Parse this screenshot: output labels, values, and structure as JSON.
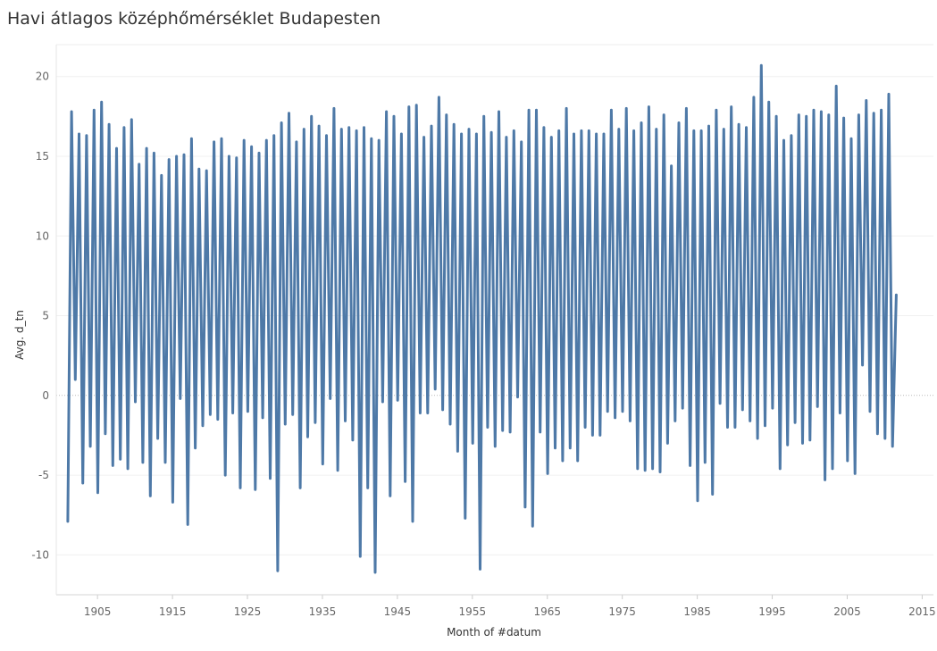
{
  "chart_data": {
    "type": "line",
    "title": "Havi átlagos középhőmérséklet Budapesten",
    "xlabel": "Month of #datum",
    "ylabel": "Avg. d_tn",
    "xlim": [
      1899.5,
      2016.5
    ],
    "ylim": [
      -12.5,
      22
    ],
    "x_ticks": [
      "1905",
      "1915",
      "1925",
      "1935",
      "1945",
      "1955",
      "1965",
      "1975",
      "1985",
      "1995",
      "2005",
      "2015"
    ],
    "y_ticks": [
      "-10",
      "-5",
      "0",
      "5",
      "10",
      "15",
      "20"
    ],
    "grid": true,
    "series": [
      {
        "color": "#4e79a7",
        "x_start": 1901,
        "x_end": 2011,
        "note_values": "annual extremes (January minimum, July maximum) per year",
        "years": [
          1901,
          1902,
          1903,
          1904,
          1905,
          1906,
          1907,
          1908,
          1909,
          1910,
          1911,
          1912,
          1913,
          1914,
          1915,
          1916,
          1917,
          1918,
          1919,
          1920,
          1921,
          1922,
          1923,
          1924,
          1925,
          1926,
          1927,
          1928,
          1929,
          1930,
          1931,
          1932,
          1933,
          1934,
          1935,
          1936,
          1937,
          1938,
          1939,
          1940,
          1941,
          1942,
          1943,
          1944,
          1945,
          1946,
          1947,
          1948,
          1949,
          1950,
          1951,
          1952,
          1953,
          1954,
          1955,
          1956,
          1957,
          1958,
          1959,
          1960,
          1961,
          1962,
          1963,
          1964,
          1965,
          1966,
          1967,
          1968,
          1969,
          1970,
          1971,
          1972,
          1973,
          1974,
          1975,
          1976,
          1977,
          1978,
          1979,
          1980,
          1981,
          1982,
          1983,
          1984,
          1985,
          1986,
          1987,
          1988,
          1989,
          1990,
          1991,
          1992,
          1993,
          1994,
          1995,
          1996,
          1997,
          1998,
          1999,
          2000,
          2001,
          2002,
          2003,
          2004,
          2005,
          2006,
          2007,
          2008,
          2009,
          2010,
          2011
        ],
        "min": [
          -7.9,
          1.0,
          -5.5,
          -3.2,
          -6.1,
          -2.4,
          -4.4,
          -4.0,
          -4.6,
          -0.4,
          -4.2,
          -6.3,
          -2.7,
          -4.2,
          -6.7,
          -0.2,
          -8.1,
          -3.3,
          -1.9,
          -1.2,
          -1.5,
          -5.0,
          -1.1,
          -5.8,
          -1.0,
          -5.9,
          -1.4,
          -5.2,
          -11.0,
          -1.8,
          -1.2,
          -5.8,
          -2.6,
          -1.7,
          -4.3,
          -0.2,
          -4.7,
          -1.6,
          -2.8,
          -10.1,
          -5.8,
          -11.1,
          -0.4,
          -6.3,
          -0.3,
          -5.4,
          -7.9,
          -1.1,
          -1.1,
          0.4,
          -0.9,
          -1.8,
          -3.5,
          -7.7,
          -3.0,
          -10.9,
          -2.0,
          -3.2,
          -2.2,
          -2.3,
          -0.1,
          -7.0,
          -8.2,
          -2.3,
          -4.9,
          -3.3,
          -4.1,
          -3.3,
          -4.1,
          -2.0,
          -2.5,
          -2.5,
          -1.0,
          -1.4,
          -1.0,
          -1.6,
          -4.6,
          -4.7,
          -4.6,
          -4.8,
          -3.0,
          -1.6,
          -0.8,
          -4.4,
          -6.6,
          -4.2,
          -6.2,
          -0.5,
          -2.0,
          -2.0,
          -0.9,
          -1.6,
          -2.7,
          -1.9,
          -0.8,
          -4.6,
          -3.1,
          -1.7,
          -3.0,
          -2.8,
          -0.7,
          -5.3,
          -4.6,
          -1.1,
          -4.1,
          -4.9,
          1.9,
          -1.0,
          -2.4,
          -2.7,
          -3.2
        ],
        "max": [
          17.8,
          16.4,
          16.3,
          17.9,
          18.4,
          17.0,
          15.5,
          16.8,
          17.3,
          14.5,
          15.5,
          15.2,
          13.8,
          14.8,
          15.0,
          15.1,
          16.1,
          14.2,
          14.1,
          15.9,
          16.1,
          15.0,
          14.9,
          16.0,
          15.6,
          15.2,
          16.0,
          16.3,
          17.1,
          17.7,
          15.9,
          16.7,
          17.5,
          16.9,
          16.3,
          18.0,
          16.7,
          16.8,
          16.6,
          16.8,
          16.1,
          16.0,
          17.8,
          17.5,
          16.4,
          18.1,
          18.2,
          16.2,
          16.9,
          18.7,
          17.6,
          17.0,
          16.4,
          16.7,
          16.4,
          17.5,
          16.5,
          17.8,
          16.2,
          16.6,
          15.9,
          17.9,
          17.9,
          16.8,
          16.2,
          16.6,
          18.0,
          16.4,
          16.6,
          16.6,
          16.4,
          16.4,
          17.9,
          16.7,
          18.0,
          16.6,
          17.1,
          18.1,
          16.7,
          17.6,
          14.4,
          17.1,
          18.0,
          16.6,
          16.6,
          16.9,
          17.9,
          16.7,
          18.1,
          17.0,
          16.8,
          18.7,
          20.7,
          18.4,
          17.5,
          16.0,
          16.3,
          17.6,
          17.5,
          17.9,
          17.8,
          17.6,
          19.4,
          17.4,
          16.1,
          17.6,
          18.5,
          17.7,
          17.9,
          18.9,
          6.3
        ]
      }
    ]
  }
}
